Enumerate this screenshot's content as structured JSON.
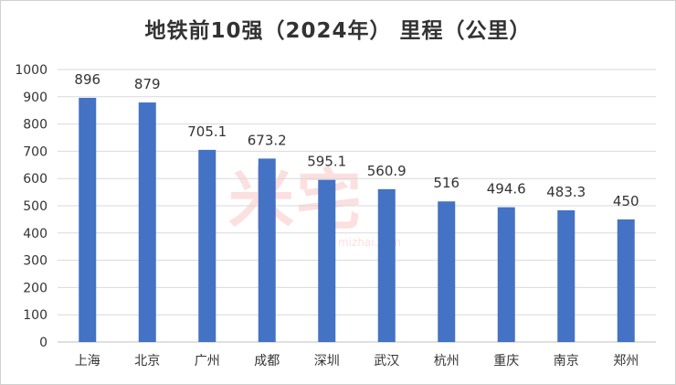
{
  "chart_data": {
    "type": "bar",
    "title": "地铁前10强（2024年） 里程（公里）",
    "categories": [
      "上海",
      "北京",
      "广州",
      "成都",
      "深圳",
      "武汉",
      "杭州",
      "重庆",
      "南京",
      "郑州"
    ],
    "values": [
      896,
      879,
      705.1,
      673.2,
      595.1,
      560.9,
      516,
      494.6,
      483.3,
      450
    ],
    "data_labels": [
      "896",
      "879",
      "705.1",
      "673.2",
      "595.1",
      "560.9",
      "516",
      "494.6",
      "483.3",
      "450"
    ],
    "ylim": [
      0,
      1000
    ],
    "yticks": [
      0,
      100,
      200,
      300,
      400,
      500,
      600,
      700,
      800,
      900,
      1000
    ],
    "grid": true,
    "legend": "none",
    "bar_color": "#4472c4"
  },
  "watermark": {
    "text": "米宅",
    "sub": "mizhai.com"
  }
}
